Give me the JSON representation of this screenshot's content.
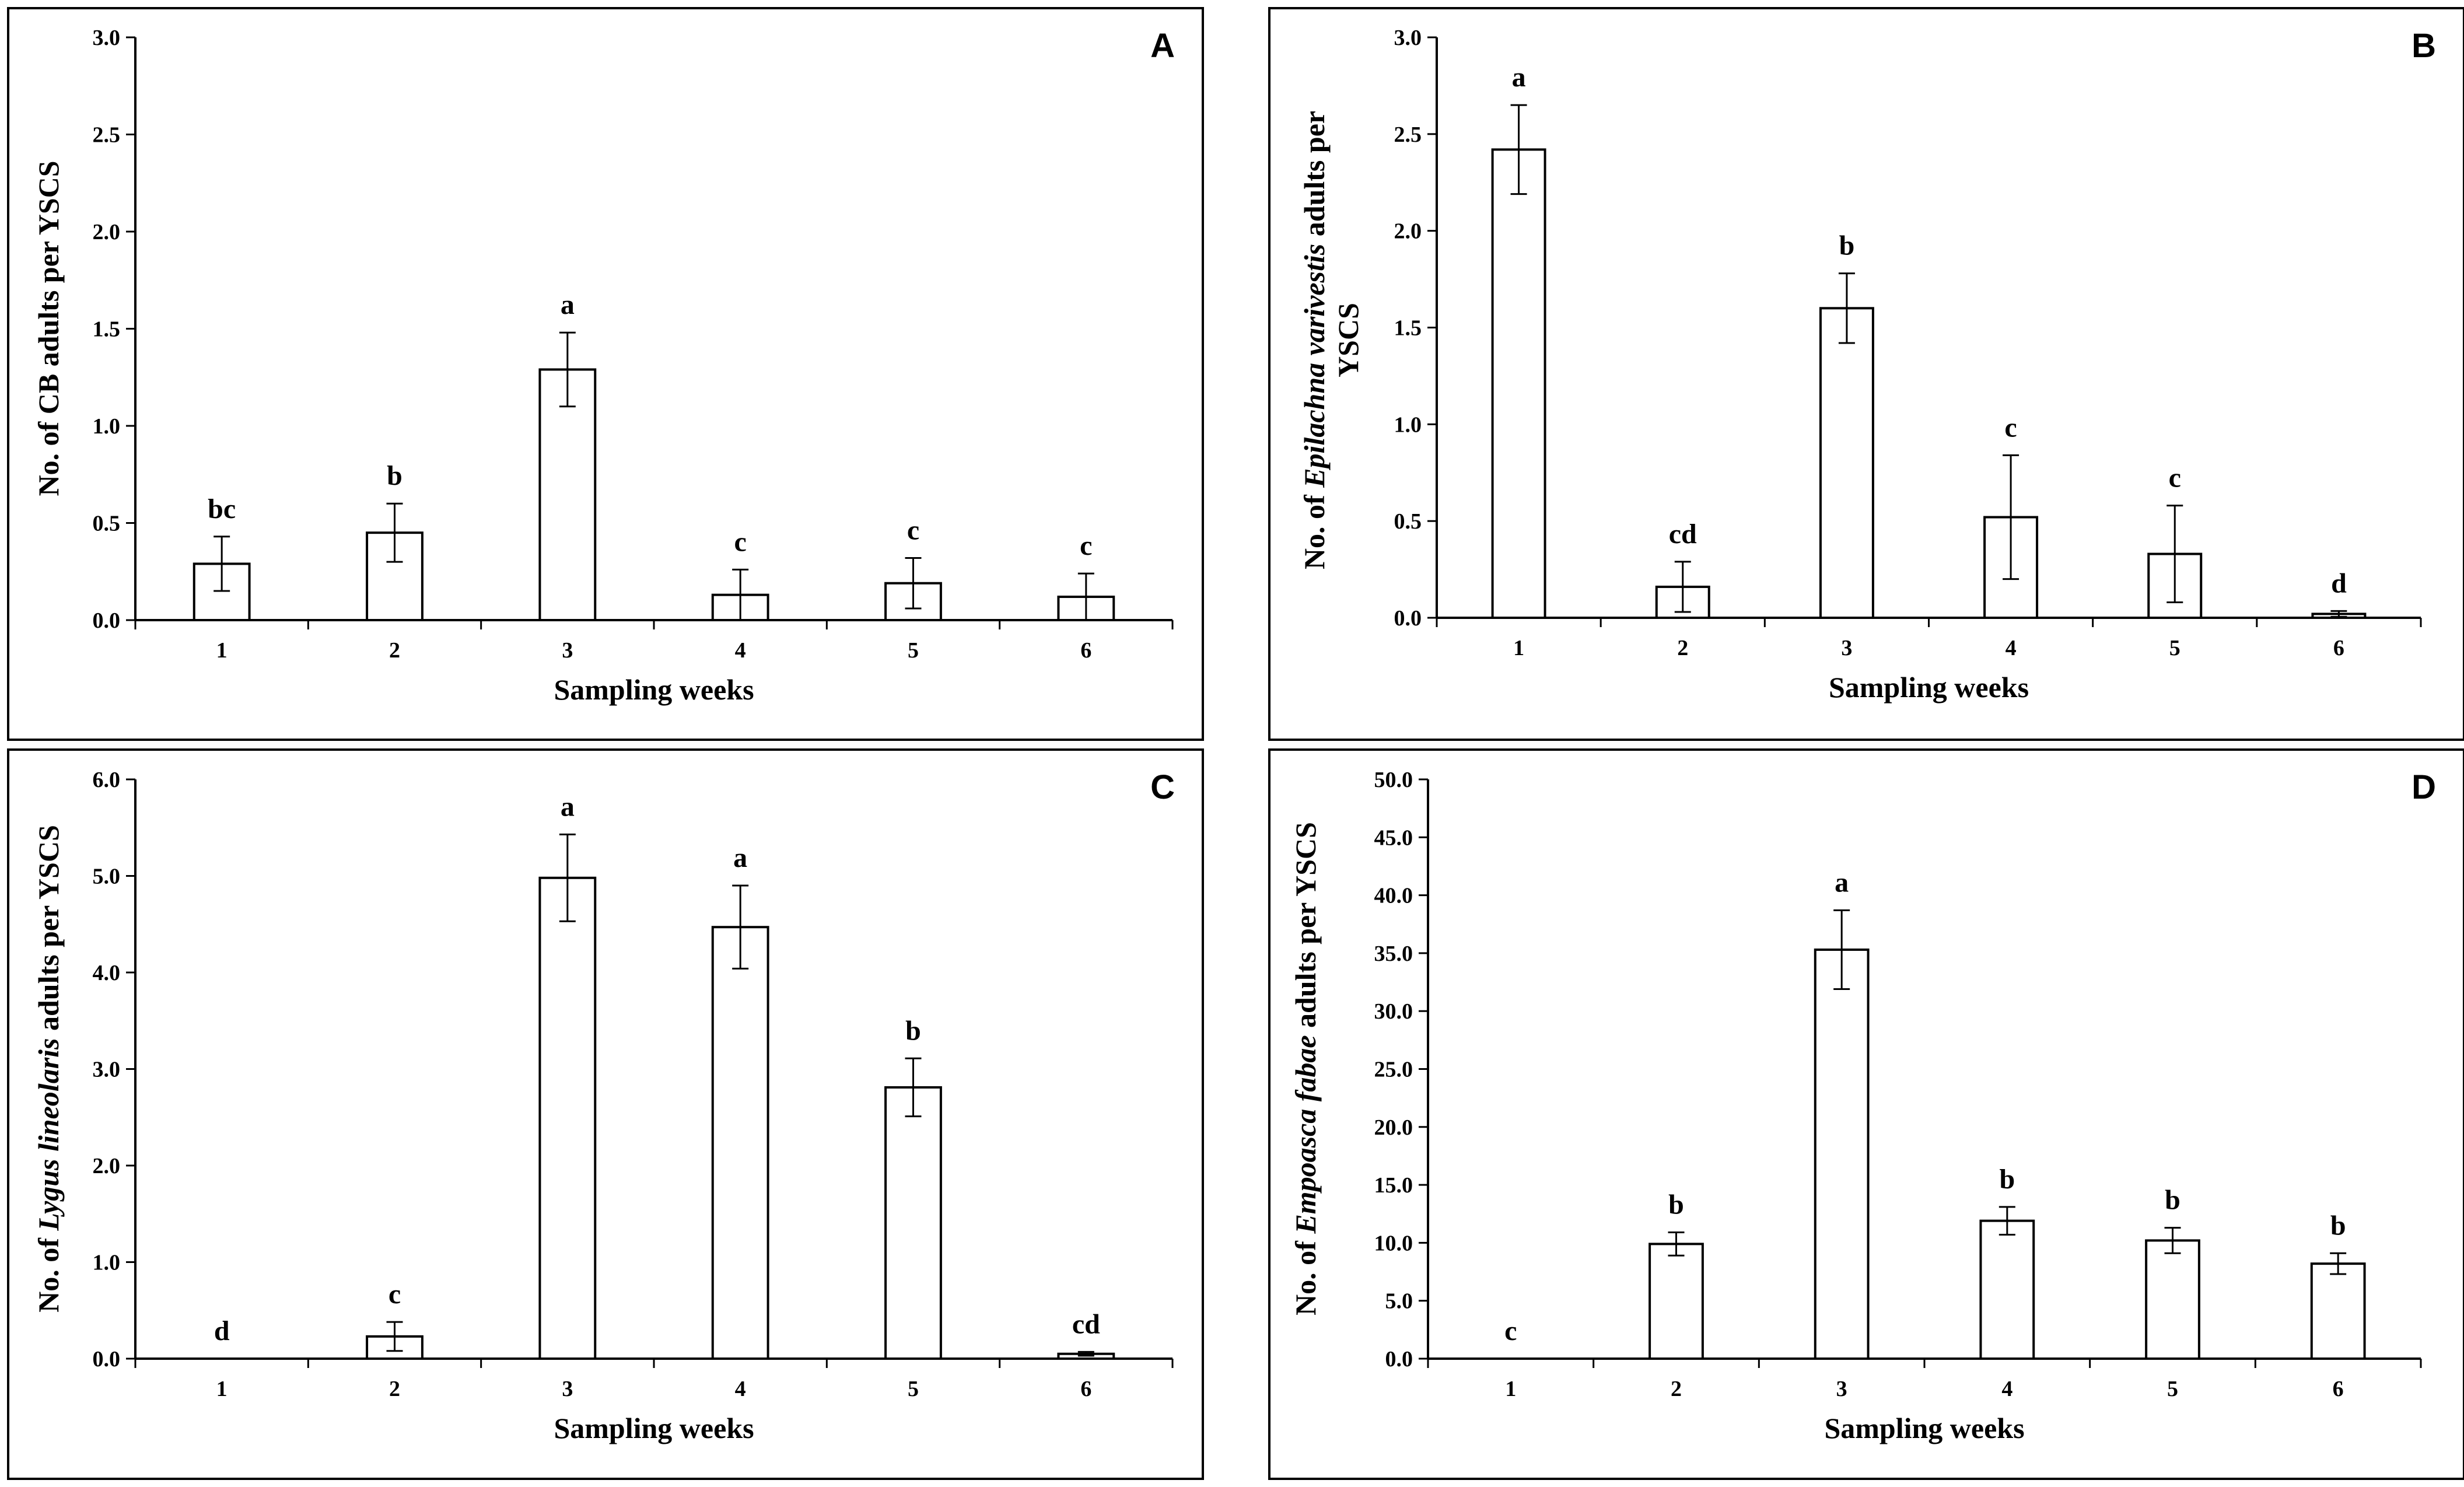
{
  "chart_data": [
    {
      "type": "bar",
      "panel_label": "A",
      "xlabel": "Sampling weeks",
      "ylabel": {
        "parts": [
          {
            "text": "No. of CB adults per YSCS",
            "italic": false
          }
        ]
      },
      "categories": [
        "1",
        "2",
        "3",
        "4",
        "5",
        "6"
      ],
      "series": [
        {
          "values": [
            0.29,
            0.45,
            1.29,
            0.13,
            0.19,
            0.12
          ]
        }
      ],
      "error": [
        0.14,
        0.15,
        0.19,
        0.13,
        0.13,
        0.12
      ],
      "significance_letters": [
        "bc",
        "b",
        "a",
        "c",
        "c",
        "c"
      ],
      "ylim": [
        0,
        3.0
      ],
      "yticks": [
        "0.0",
        "0.5",
        "1.0",
        "1.5",
        "2.0",
        "2.5",
        "3.0"
      ],
      "grid": false
    },
    {
      "type": "bar",
      "panel_label": "B",
      "xlabel": "Sampling weeks",
      "ylabel": {
        "parts": [
          {
            "text": "No. of ",
            "italic": false
          },
          {
            "text": "Epilachna varivestis",
            "italic": true
          },
          {
            "text": " adults per",
            "italic": false
          }
        ],
        "line2": "YSCS"
      },
      "categories": [
        "1",
        "2",
        "3",
        "4",
        "5",
        "6"
      ],
      "series": [
        {
          "values": [
            2.42,
            0.16,
            1.6,
            0.52,
            0.33,
            0.02
          ]
        }
      ],
      "error": [
        0.23,
        0.13,
        0.18,
        0.32,
        0.25,
        0.015
      ],
      "significance_letters": [
        "a",
        "cd",
        "b",
        "c",
        "c",
        "d"
      ],
      "ylim": [
        0,
        3.0
      ],
      "yticks": [
        "0.0",
        "0.5",
        "1.0",
        "1.5",
        "2.0",
        "2.5",
        "3.0"
      ],
      "grid": false
    },
    {
      "type": "bar",
      "panel_label": "C",
      "xlabel": "Sampling weeks",
      "ylabel": {
        "parts": [
          {
            "text": "No. of ",
            "italic": false
          },
          {
            "text": "Lygus lineolaris",
            "italic": true
          },
          {
            "text": " adults per YSCS",
            "italic": false
          }
        ]
      },
      "categories": [
        "1",
        "2",
        "3",
        "4",
        "5",
        "6"
      ],
      "series": [
        {
          "values": [
            0.0,
            0.23,
            4.98,
            4.47,
            2.81,
            0.05
          ]
        }
      ],
      "error": [
        0.0,
        0.15,
        0.45,
        0.43,
        0.3,
        0.02
      ],
      "significance_letters": [
        "d",
        "c",
        "a",
        "a",
        "b",
        "cd"
      ],
      "ylim": [
        0,
        6.0
      ],
      "yticks": [
        "0.0",
        "1.0",
        "2.0",
        "3.0",
        "4.0",
        "5.0",
        "6.0"
      ],
      "grid": false
    },
    {
      "type": "bar",
      "panel_label": "D",
      "xlabel": "Sampling weeks",
      "ylabel": {
        "parts": [
          {
            "text": "No. of ",
            "italic": false
          },
          {
            "text": "Empoasca fabae",
            "italic": true
          },
          {
            "text": " adults per YSCS",
            "italic": false
          }
        ]
      },
      "categories": [
        "1",
        "2",
        "3",
        "4",
        "5",
        "6"
      ],
      "series": [
        {
          "values": [
            0.0,
            9.9,
            35.3,
            11.9,
            10.2,
            8.2
          ]
        }
      ],
      "error": [
        0.0,
        1.0,
        3.4,
        1.2,
        1.1,
        0.9
      ],
      "significance_letters": [
        "c",
        "b",
        "a",
        "b",
        "b",
        "b"
      ],
      "ylim": [
        0,
        50.0
      ],
      "yticks": [
        "0.0",
        "5.0",
        "10.0",
        "15.0",
        "20.0",
        "25.0",
        "30.0",
        "35.0",
        "40.0",
        "45.0",
        "50.0"
      ],
      "grid": false
    }
  ]
}
